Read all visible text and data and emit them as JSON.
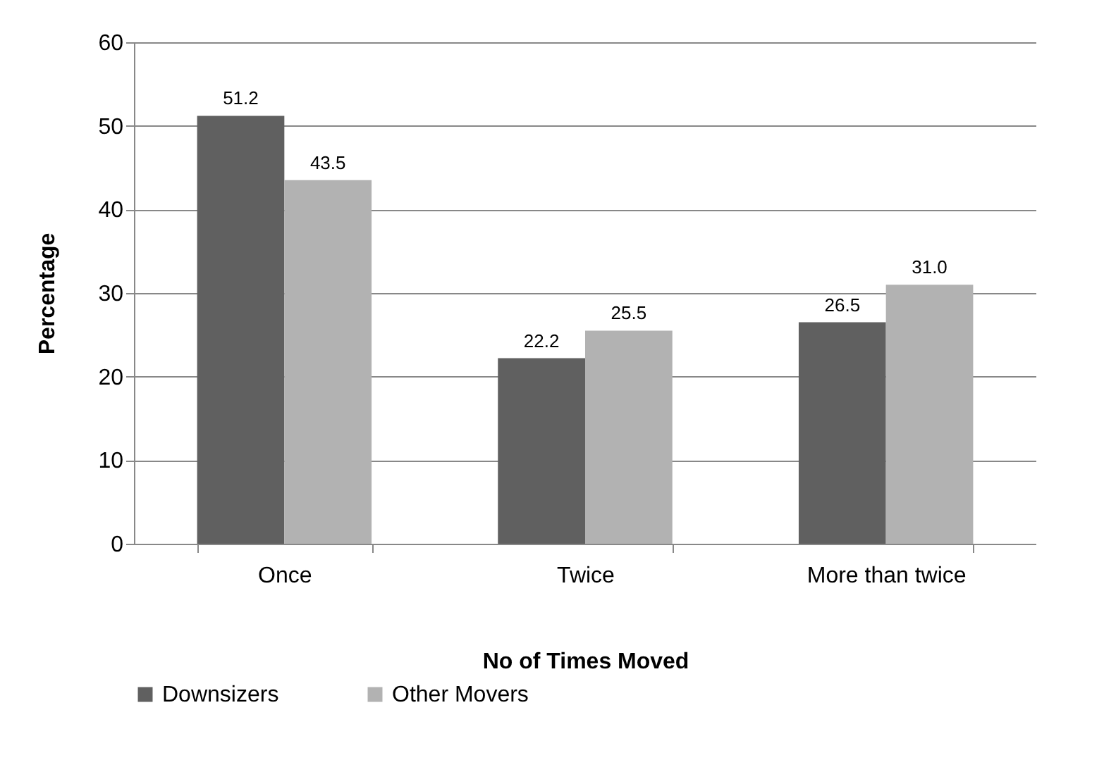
{
  "chart_data": {
    "type": "bar",
    "xlabel": "No of Times Moved",
    "ylabel": "Percentage",
    "categories": [
      "Once",
      "Twice",
      "More than twice"
    ],
    "series": [
      {
        "name": "Downsizers",
        "color": "#606060",
        "values": [
          51.2,
          22.2,
          26.5
        ]
      },
      {
        "name": "Other Movers",
        "color": "#b2b2b2",
        "values": [
          43.5,
          25.5,
          31.0
        ]
      }
    ],
    "ylim": [
      0,
      60
    ],
    "yticks": [
      0,
      10,
      20,
      30,
      40,
      50,
      60
    ],
    "grid": "y",
    "legend": "bottom",
    "value_labels": [
      [
        "51.2",
        "22.2",
        "26.5"
      ],
      [
        "43.5",
        "25.5",
        "31.0"
      ]
    ]
  }
}
